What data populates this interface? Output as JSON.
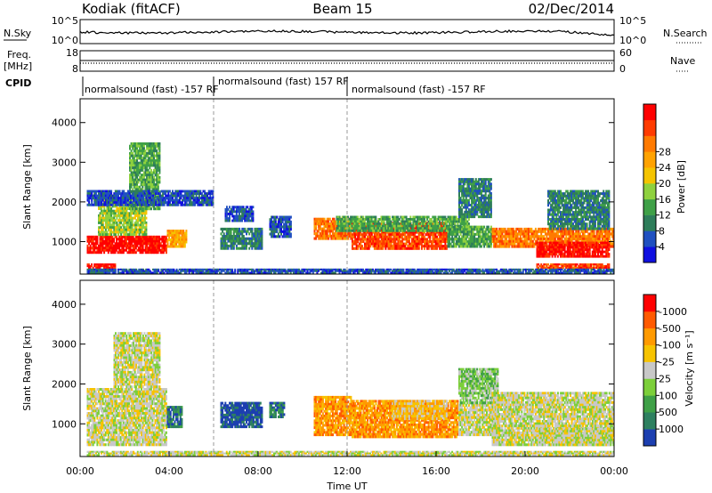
{
  "header": {
    "left": "Kodiak (fitACF)",
    "center": "Beam 15",
    "right": "02/Dec/2014"
  },
  "top_panels": {
    "nsky_label": "N.Sky",
    "nsky_ticks": [
      "10^5",
      "10^0"
    ],
    "nsearch_label": "N.Search",
    "nsearch_ticks": [
      "10^5",
      "10^0"
    ],
    "freq_label_1": "Freq.",
    "freq_label_2": "[MHz]",
    "freq_ticks": [
      "18",
      "8"
    ],
    "nave_label": "Nave",
    "nave_ticks": [
      "60",
      "0"
    ],
    "cpid_label": "CPID",
    "cpid_segments": [
      {
        "text": "normalsound (fast) -157 RF",
        "start_hour": 0,
        "end_hour": 6
      },
      {
        "text": "normalsound (fast) 157 RF",
        "start_hour": 6,
        "end_hour": 12
      },
      {
        "text": "normalsound (fast) -157 RF",
        "start_hour": 12,
        "end_hour": 24
      }
    ]
  },
  "chart_data": [
    {
      "type": "heatmap",
      "name": "power",
      "ylabel": "Slant Range [km]",
      "yticks": [
        1000,
        2000,
        3000,
        4000
      ],
      "ylim": [
        180,
        4600
      ],
      "xlim": [
        0,
        24
      ],
      "colorbar": {
        "label": "Power [dB]",
        "ticks": [
          "4",
          "8",
          "12",
          "16",
          "20",
          "24",
          "28"
        ],
        "colors": [
          "#1010e0",
          "#2050c0",
          "#2e7d5a",
          "#3fa047",
          "#8fd13f",
          "#f5c400",
          "#ffa200",
          "#ff7a00",
          "#ff3b00",
          "#ff0000"
        ]
      },
      "regions": [
        {
          "x": [
            0.3,
            3.9
          ],
          "y": [
            700,
            1150
          ],
          "level": 9
        },
        {
          "x": [
            3.9,
            4.8
          ],
          "y": [
            850,
            1300
          ],
          "level": 6
        },
        {
          "x": [
            0.8,
            3.0
          ],
          "y": [
            1150,
            2100
          ],
          "level": 4
        },
        {
          "x": [
            2.2,
            3.6
          ],
          "y": [
            1800,
            3500
          ],
          "level": 3
        },
        {
          "x": [
            0.3,
            1.6
          ],
          "y": [
            320,
            450
          ],
          "level": 9
        },
        {
          "x": [
            0.3,
            6.0
          ],
          "y": [
            1900,
            2300
          ],
          "level": 1
        },
        {
          "x": [
            6.3,
            8.2
          ],
          "y": [
            800,
            1350
          ],
          "level": 2
        },
        {
          "x": [
            6.5,
            7.8
          ],
          "y": [
            1500,
            1900
          ],
          "level": 1
        },
        {
          "x": [
            8.5,
            9.5
          ],
          "y": [
            1100,
            1650
          ],
          "level": 1
        },
        {
          "x": [
            10.5,
            12.2
          ],
          "y": [
            1050,
            1600
          ],
          "level": 7
        },
        {
          "x": [
            12.2,
            16.5
          ],
          "y": [
            800,
            1500
          ],
          "level": 8
        },
        {
          "x": [
            11.5,
            17.5
          ],
          "y": [
            1250,
            1650
          ],
          "level": 3
        },
        {
          "x": [
            16.5,
            18.5
          ],
          "y": [
            850,
            1400
          ],
          "level": 3
        },
        {
          "x": [
            17.0,
            18.5
          ],
          "y": [
            1600,
            2600
          ],
          "level": 2
        },
        {
          "x": [
            18.5,
            24.0
          ],
          "y": [
            850,
            1350
          ],
          "level": 7
        },
        {
          "x": [
            20.5,
            23.8
          ],
          "y": [
            600,
            1000
          ],
          "level": 9
        },
        {
          "x": [
            20.5,
            23.8
          ],
          "y": [
            320,
            450
          ],
          "level": 8
        },
        {
          "x": [
            21.0,
            23.8
          ],
          "y": [
            1300,
            2300
          ],
          "level": 2
        },
        {
          "x": [
            0.3,
            24.0
          ],
          "y": [
            200,
            320
          ],
          "level": 1
        }
      ]
    },
    {
      "type": "heatmap",
      "name": "velocity",
      "ylabel": "Slant Range [km]",
      "yticks": [
        1000,
        2000,
        3000,
        4000
      ],
      "ylim": [
        180,
        4600
      ],
      "xlim": [
        0,
        24
      ],
      "xticks": [
        "00:00",
        "04:00",
        "08:00",
        "12:00",
        "16:00",
        "20:00",
        "00:00"
      ],
      "xlabel": "Time UT",
      "colorbar": {
        "label": "Velocity [m s⁻¹]",
        "ticks": [
          "1000",
          "500",
          "100",
          "25",
          "-25",
          "-100",
          "-500",
          "-1000"
        ],
        "colors": [
          "#1c3fb0",
          "#2e8060",
          "#3fa047",
          "#7ccf3a",
          "#c8c8c8",
          "#f7c300",
          "#ff9a00",
          "#ff5a00",
          "#ff0000"
        ]
      },
      "regions": [
        {
          "x": [
            0.3,
            3.9
          ],
          "y": [
            450,
            1900
          ],
          "level": 4
        },
        {
          "x": [
            1.5,
            3.6
          ],
          "y": [
            1900,
            3300
          ],
          "level": 4
        },
        {
          "x": [
            3.9,
            4.6
          ],
          "y": [
            900,
            1450
          ],
          "level": 1
        },
        {
          "x": [
            6.3,
            8.2
          ],
          "y": [
            900,
            1550
          ],
          "level": 0
        },
        {
          "x": [
            8.5,
            9.2
          ],
          "y": [
            1150,
            1550
          ],
          "level": 1
        },
        {
          "x": [
            10.5,
            12.2
          ],
          "y": [
            700,
            1700
          ],
          "level": 6
        },
        {
          "x": [
            12.2,
            17.0
          ],
          "y": [
            650,
            1600
          ],
          "level": 6
        },
        {
          "x": [
            14.0,
            16.5
          ],
          "y": [
            1100,
            1600
          ],
          "level": 5
        },
        {
          "x": [
            17.0,
            18.8
          ],
          "y": [
            700,
            1500
          ],
          "level": 4
        },
        {
          "x": [
            17.0,
            18.8
          ],
          "y": [
            1500,
            2400
          ],
          "level": 3
        },
        {
          "x": [
            18.5,
            24.0
          ],
          "y": [
            450,
            1800
          ],
          "level": 4
        },
        {
          "x": [
            20.5,
            23.8
          ],
          "y": [
            450,
            900
          ],
          "level": 4
        },
        {
          "x": [
            0.3,
            24.0
          ],
          "y": [
            200,
            320
          ],
          "level": 4
        }
      ]
    }
  ]
}
